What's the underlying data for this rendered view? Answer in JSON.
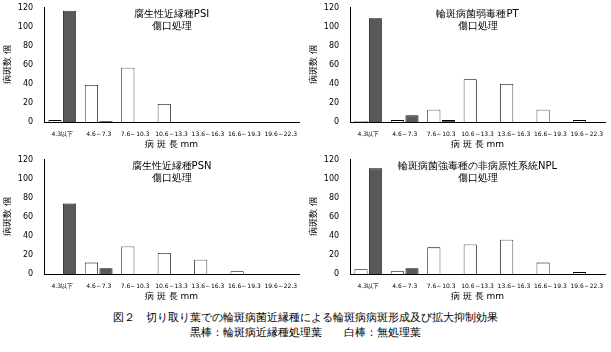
{
  "chart_data": [
    {
      "type": "bar",
      "title": "腐生性近縁種PSI",
      "subtitle": "傷口処理",
      "categories": [
        "4.3以下",
        "4.6～7.3",
        "7.6～10.3",
        "10.6～13.3",
        "13.6～16.3",
        "16.6～19.3",
        "19.6～22.3"
      ],
      "series": [
        {
          "name": "無処理葉",
          "color": "#ffffff",
          "values": [
            2,
            39,
            57,
            19,
            0,
            0,
            0
          ]
        },
        {
          "name": "輪斑病近縁種処理葉",
          "color": "#595959",
          "values": [
            117,
            1,
            0,
            0,
            0,
            0,
            0
          ]
        }
      ],
      "xlabel": "病 斑 長 mm",
      "ylabel": "病斑数 個",
      "ylim": [
        0,
        120
      ],
      "yticks": [
        0,
        20,
        40,
        60,
        80,
        100,
        120
      ],
      "grid": false
    },
    {
      "type": "bar",
      "title": "輪斑病菌弱毒種PT",
      "subtitle": "傷口処理",
      "categories": [
        "4.3以下",
        "4.6～7.3",
        "7.6～10.3",
        "10.6～13.3",
        "13.6～16.3",
        "16.6～19.3",
        "19.6～22.3"
      ],
      "series": [
        {
          "name": "無処理葉",
          "color": "#ffffff",
          "values": [
            1,
            2,
            13,
            45,
            40,
            13,
            2
          ]
        },
        {
          "name": "輪斑病近縁種処理葉",
          "color": "#595959",
          "values": [
            109,
            7,
            2,
            0,
            0,
            0,
            0
          ]
        }
      ],
      "xlabel": "病 斑 長 mm",
      "ylabel": "病斑数 個",
      "ylim": [
        0,
        120
      ],
      "yticks": [
        0,
        20,
        40,
        60,
        80,
        100,
        120
      ],
      "grid": false
    },
    {
      "type": "bar",
      "title": "腐生性近縁種PSN",
      "subtitle": "傷口処理",
      "categories": [
        "4.3以下",
        "4.6～7.3",
        "7.6～10.3",
        "10.6～13.3",
        "13.6～16.3",
        "16.6～19.3",
        "19.6～22.3"
      ],
      "series": [
        {
          "name": "無処理葉",
          "color": "#ffffff",
          "values": [
            0,
            12,
            29,
            22,
            15,
            3,
            0
          ]
        },
        {
          "name": "輪斑病近縁種処理葉",
          "color": "#595959",
          "values": [
            74,
            6,
            0,
            0,
            0,
            0,
            0
          ]
        }
      ],
      "xlabel": "病 斑 長 mm",
      "ylabel": "病斑数 個",
      "ylim": [
        0,
        120
      ],
      "yticks": [
        0,
        20,
        40,
        60,
        80,
        100,
        120
      ],
      "grid": false
    },
    {
      "type": "bar",
      "title": "輪斑病菌強毒種の非病原性系統NPL",
      "subtitle": "傷口処理",
      "categories": [
        "4.3以下",
        "4.6～7.3",
        "7.6～10.3",
        "10.6～13.3",
        "13.6～16.3",
        "16.6～19.3",
        "19.6～22.3"
      ],
      "series": [
        {
          "name": "無処理葉",
          "color": "#ffffff",
          "values": [
            5,
            3,
            28,
            31,
            36,
            12,
            2
          ]
        },
        {
          "name": "輪斑病近縁種処理葉",
          "color": "#595959",
          "values": [
            111,
            6,
            0,
            0,
            0,
            0,
            0
          ]
        }
      ],
      "xlabel": "病 斑 長 mm",
      "ylabel": "病斑数 個",
      "ylim": [
        0,
        120
      ],
      "yticks": [
        0,
        20,
        40,
        60,
        80,
        100,
        120
      ],
      "grid": false
    }
  ],
  "caption": [
    "図２　切り取り葉での輪斑病菌近縁種による輪斑病病斑形成及び拡大抑制効果",
    "黒棒：輪斑病近縁種処理葉　　白棒：無処理葉"
  ]
}
